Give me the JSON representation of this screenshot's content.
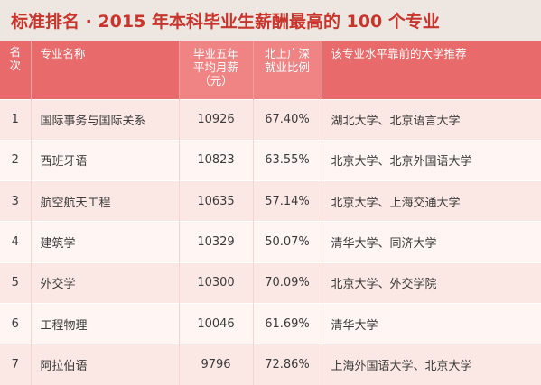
{
  "title": "标准排名 · 2015 年本科毕业生薪酬最高的 100 个专业",
  "header": {
    "rank_line1": "名",
    "rank_line2": "次",
    "major": "专业名称",
    "salary_line1": "毕业五年",
    "salary_line2": "平均月薪",
    "salary_line3": "（元）",
    "ratio_line1": "北上广深",
    "ratio_line2": "就业比例",
    "universities": "该专业水平靠前的大学推荐"
  },
  "rows": [
    {
      "rank": "1",
      "major": "国际事务与国际关系",
      "salary": "10926",
      "ratio": "67.40%",
      "universities": "湖北大学、北京语言大学"
    },
    {
      "rank": "2",
      "major": "西班牙语",
      "salary": "10823",
      "ratio": "63.55%",
      "universities": "北京大学、北京外国语大学"
    },
    {
      "rank": "3",
      "major": "航空航天工程",
      "salary": "10635",
      "ratio": "57.14%",
      "universities": "北京大学、上海交通大学"
    },
    {
      "rank": "4",
      "major": "建筑学",
      "salary": "10329",
      "ratio": "50.07%",
      "universities": "清华大学、同济大学"
    },
    {
      "rank": "5",
      "major": "外交学",
      "salary": "10300",
      "ratio": "70.09%",
      "universities": "北京大学、外交学院"
    },
    {
      "rank": "6",
      "major": "工程物理",
      "salary": "10046",
      "ratio": "61.69%",
      "universities": "清华大学"
    },
    {
      "rank": "7",
      "major": "阿拉伯语",
      "salary": "9796",
      "ratio": "72.86%",
      "universities": "上海外国语大学、北京大学"
    }
  ],
  "colors": {
    "title_text": "#c8352c",
    "title_background": "#ede6e1",
    "header_background": "#e86a6a",
    "header_highlight": "#f08383",
    "row_odd": "#fbe7e3",
    "row_even": "#fff6f3"
  }
}
